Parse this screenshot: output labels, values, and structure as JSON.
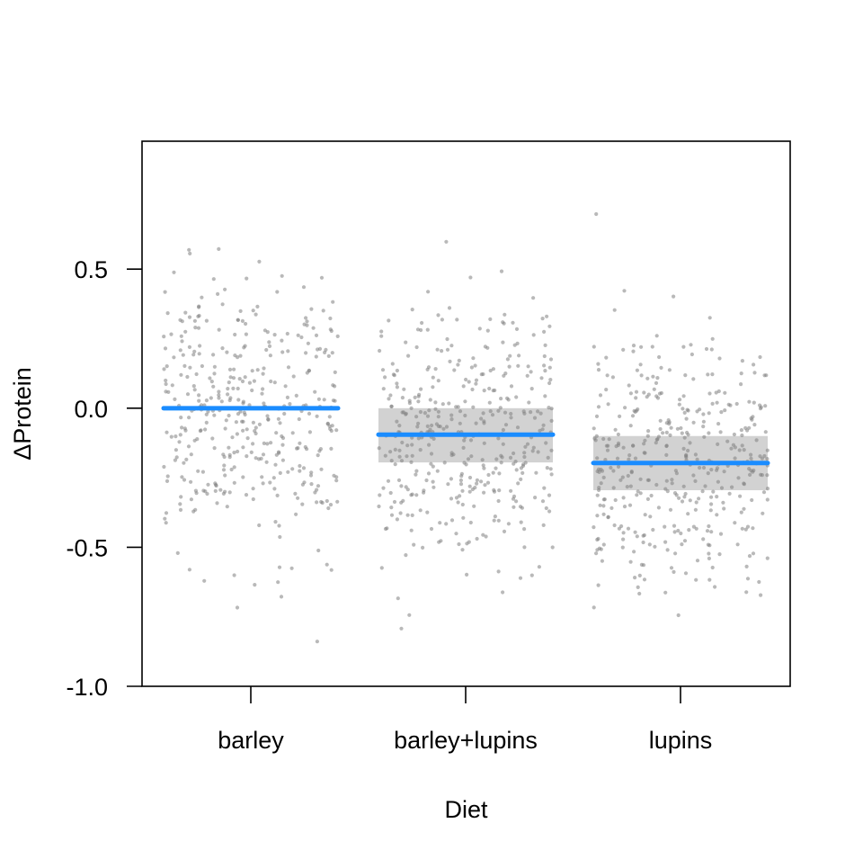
{
  "chart_data": {
    "type": "scatter",
    "title": "",
    "xlabel": "Diet",
    "ylabel": "ΔProtein",
    "categories": [
      "barley",
      "barley+lupins",
      "lupins"
    ],
    "yticks": [
      {
        "value": -1.0,
        "label": "-1.0"
      },
      {
        "value": -0.5,
        "label": "-0.5"
      },
      {
        "value": 0.0,
        "label": "0.0"
      },
      {
        "value": 0.5,
        "label": "0.5"
      }
    ],
    "ylim": [
      -1.0,
      0.96
    ],
    "grid": false,
    "estimates": [
      {
        "category": "barley",
        "mean": 0.0,
        "lower": 0.0,
        "upper": 0.0
      },
      {
        "category": "barley+lupins",
        "mean": -0.095,
        "lower": -0.195,
        "upper": 0.0
      },
      {
        "category": "lupins",
        "mean": -0.197,
        "lower": -0.295,
        "upper": -0.1
      }
    ],
    "points_per_group": 400,
    "colors": {
      "mean_line": "#1a8cff",
      "interval_band": "#bfbfbf",
      "points": "#808080",
      "axis": "#000000"
    }
  }
}
